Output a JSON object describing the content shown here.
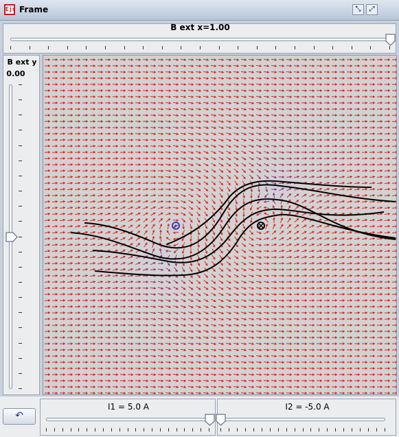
{
  "window": {
    "title": "Frame",
    "app_icon": "ejs-app-icon",
    "buttons": [
      "restore-icon",
      "maximize-icon"
    ]
  },
  "top_slider": {
    "title": "B ext x=1.00",
    "value": 1.0,
    "min": -1.0,
    "max": 1.0
  },
  "left_slider": {
    "title": "B ext y",
    "value_label": "0.00",
    "value": 0.0,
    "min": -1.0,
    "max": 1.0
  },
  "field_view": {
    "colors": {
      "arrow_strong": "#e0201a",
      "arrow_weak": "#5a35c8",
      "background": "#d2d2d2",
      "field_line": "#000000"
    },
    "wire1": {
      "symbol": "out-of-page",
      "color": "#2a3fd0"
    },
    "wire2": {
      "symbol": "into-page",
      "color": "#000000"
    }
  },
  "bottom": {
    "reset_icon": "undo-icon",
    "i1_slider": {
      "title": "I1 = 5.0 A",
      "value": 5.0,
      "min": -5.0,
      "max": 5.0
    },
    "i2_slider": {
      "title": "I2 = -5.0 A",
      "value": -5.0,
      "min": -5.0,
      "max": 5.0
    }
  }
}
